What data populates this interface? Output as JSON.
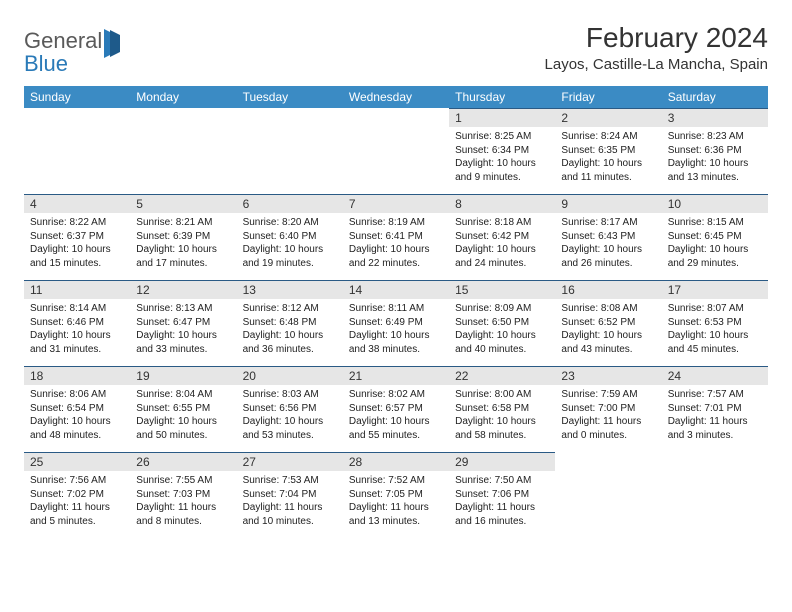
{
  "logo": {
    "part1": "General",
    "part2": "Blue"
  },
  "title": "February 2024",
  "subtitle": "Layos, Castille-La Mancha, Spain",
  "colors": {
    "header_bg": "#3b8bc4",
    "cell_border": "#2a5a85",
    "daynum_bg": "#e6e6e6",
    "logo_gray": "#5a5a5a",
    "logo_blue": "#2a7ab8"
  },
  "day_headers": [
    "Sunday",
    "Monday",
    "Tuesday",
    "Wednesday",
    "Thursday",
    "Friday",
    "Saturday"
  ],
  "weeks": [
    [
      {
        "blank": true
      },
      {
        "blank": true
      },
      {
        "blank": true
      },
      {
        "blank": true
      },
      {
        "n": "1",
        "sr": "8:25 AM",
        "ss": "6:34 PM",
        "dl": "10 hours and 9 minutes."
      },
      {
        "n": "2",
        "sr": "8:24 AM",
        "ss": "6:35 PM",
        "dl": "10 hours and 11 minutes."
      },
      {
        "n": "3",
        "sr": "8:23 AM",
        "ss": "6:36 PM",
        "dl": "10 hours and 13 minutes."
      }
    ],
    [
      {
        "n": "4",
        "sr": "8:22 AM",
        "ss": "6:37 PM",
        "dl": "10 hours and 15 minutes."
      },
      {
        "n": "5",
        "sr": "8:21 AM",
        "ss": "6:39 PM",
        "dl": "10 hours and 17 minutes."
      },
      {
        "n": "6",
        "sr": "8:20 AM",
        "ss": "6:40 PM",
        "dl": "10 hours and 19 minutes."
      },
      {
        "n": "7",
        "sr": "8:19 AM",
        "ss": "6:41 PM",
        "dl": "10 hours and 22 minutes."
      },
      {
        "n": "8",
        "sr": "8:18 AM",
        "ss": "6:42 PM",
        "dl": "10 hours and 24 minutes."
      },
      {
        "n": "9",
        "sr": "8:17 AM",
        "ss": "6:43 PM",
        "dl": "10 hours and 26 minutes."
      },
      {
        "n": "10",
        "sr": "8:15 AM",
        "ss": "6:45 PM",
        "dl": "10 hours and 29 minutes."
      }
    ],
    [
      {
        "n": "11",
        "sr": "8:14 AM",
        "ss": "6:46 PM",
        "dl": "10 hours and 31 minutes."
      },
      {
        "n": "12",
        "sr": "8:13 AM",
        "ss": "6:47 PM",
        "dl": "10 hours and 33 minutes."
      },
      {
        "n": "13",
        "sr": "8:12 AM",
        "ss": "6:48 PM",
        "dl": "10 hours and 36 minutes."
      },
      {
        "n": "14",
        "sr": "8:11 AM",
        "ss": "6:49 PM",
        "dl": "10 hours and 38 minutes."
      },
      {
        "n": "15",
        "sr": "8:09 AM",
        "ss": "6:50 PM",
        "dl": "10 hours and 40 minutes."
      },
      {
        "n": "16",
        "sr": "8:08 AM",
        "ss": "6:52 PM",
        "dl": "10 hours and 43 minutes."
      },
      {
        "n": "17",
        "sr": "8:07 AM",
        "ss": "6:53 PM",
        "dl": "10 hours and 45 minutes."
      }
    ],
    [
      {
        "n": "18",
        "sr": "8:06 AM",
        "ss": "6:54 PM",
        "dl": "10 hours and 48 minutes."
      },
      {
        "n": "19",
        "sr": "8:04 AM",
        "ss": "6:55 PM",
        "dl": "10 hours and 50 minutes."
      },
      {
        "n": "20",
        "sr": "8:03 AM",
        "ss": "6:56 PM",
        "dl": "10 hours and 53 minutes."
      },
      {
        "n": "21",
        "sr": "8:02 AM",
        "ss": "6:57 PM",
        "dl": "10 hours and 55 minutes."
      },
      {
        "n": "22",
        "sr": "8:00 AM",
        "ss": "6:58 PM",
        "dl": "10 hours and 58 minutes."
      },
      {
        "n": "23",
        "sr": "7:59 AM",
        "ss": "7:00 PM",
        "dl": "11 hours and 0 minutes."
      },
      {
        "n": "24",
        "sr": "7:57 AM",
        "ss": "7:01 PM",
        "dl": "11 hours and 3 minutes."
      }
    ],
    [
      {
        "n": "25",
        "sr": "7:56 AM",
        "ss": "7:02 PM",
        "dl": "11 hours and 5 minutes."
      },
      {
        "n": "26",
        "sr": "7:55 AM",
        "ss": "7:03 PM",
        "dl": "11 hours and 8 minutes."
      },
      {
        "n": "27",
        "sr": "7:53 AM",
        "ss": "7:04 PM",
        "dl": "11 hours and 10 minutes."
      },
      {
        "n": "28",
        "sr": "7:52 AM",
        "ss": "7:05 PM",
        "dl": "11 hours and 13 minutes."
      },
      {
        "n": "29",
        "sr": "7:50 AM",
        "ss": "7:06 PM",
        "dl": "11 hours and 16 minutes."
      },
      {
        "blank": true
      },
      {
        "blank": true
      }
    ]
  ],
  "labels": {
    "sunrise": "Sunrise: ",
    "sunset": "Sunset: ",
    "daylight": "Daylight: "
  }
}
